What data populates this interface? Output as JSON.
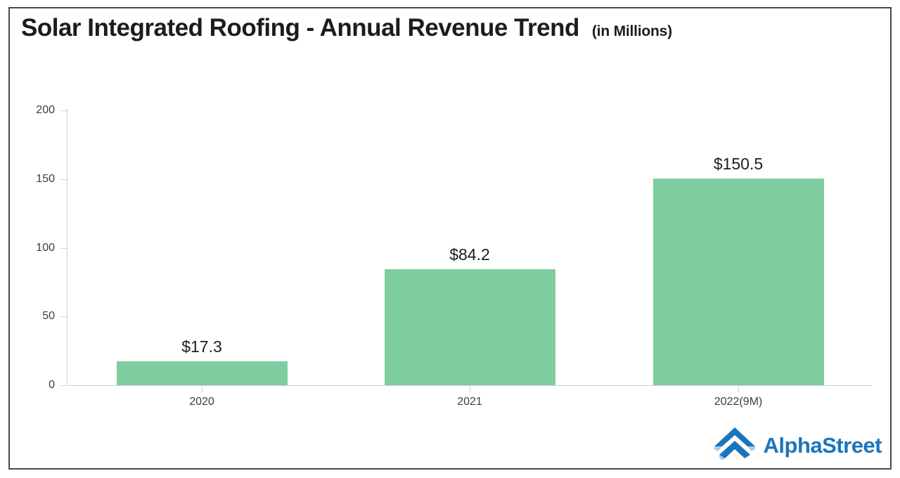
{
  "chart_data": {
    "type": "bar",
    "title": "Solar Integrated Roofing - Annual Revenue Trend",
    "subtitle": "(in Millions)",
    "categories": [
      "2020",
      "2021",
      "2022(9M)"
    ],
    "values": [
      17.3,
      84.2,
      150.5
    ],
    "value_labels": [
      "$17.3",
      "$84.2",
      "$150.5"
    ],
    "y_ticks": [
      0,
      50,
      100,
      150,
      200
    ],
    "ylim": [
      0,
      200
    ],
    "xlabel": "",
    "ylabel": "",
    "grid": false,
    "legend": false
  },
  "colors": {
    "bar": "#7dcda0",
    "axis": "#d2d2d2",
    "tick_label": "#3d3d3d",
    "value_label": "#1c1c1c",
    "frame_border": "#4a4a4a",
    "logo_blue": "#1b75bc",
    "logo_light_blue": "#a9cce7"
  },
  "branding": {
    "logo_text": "AlphaStreet"
  }
}
